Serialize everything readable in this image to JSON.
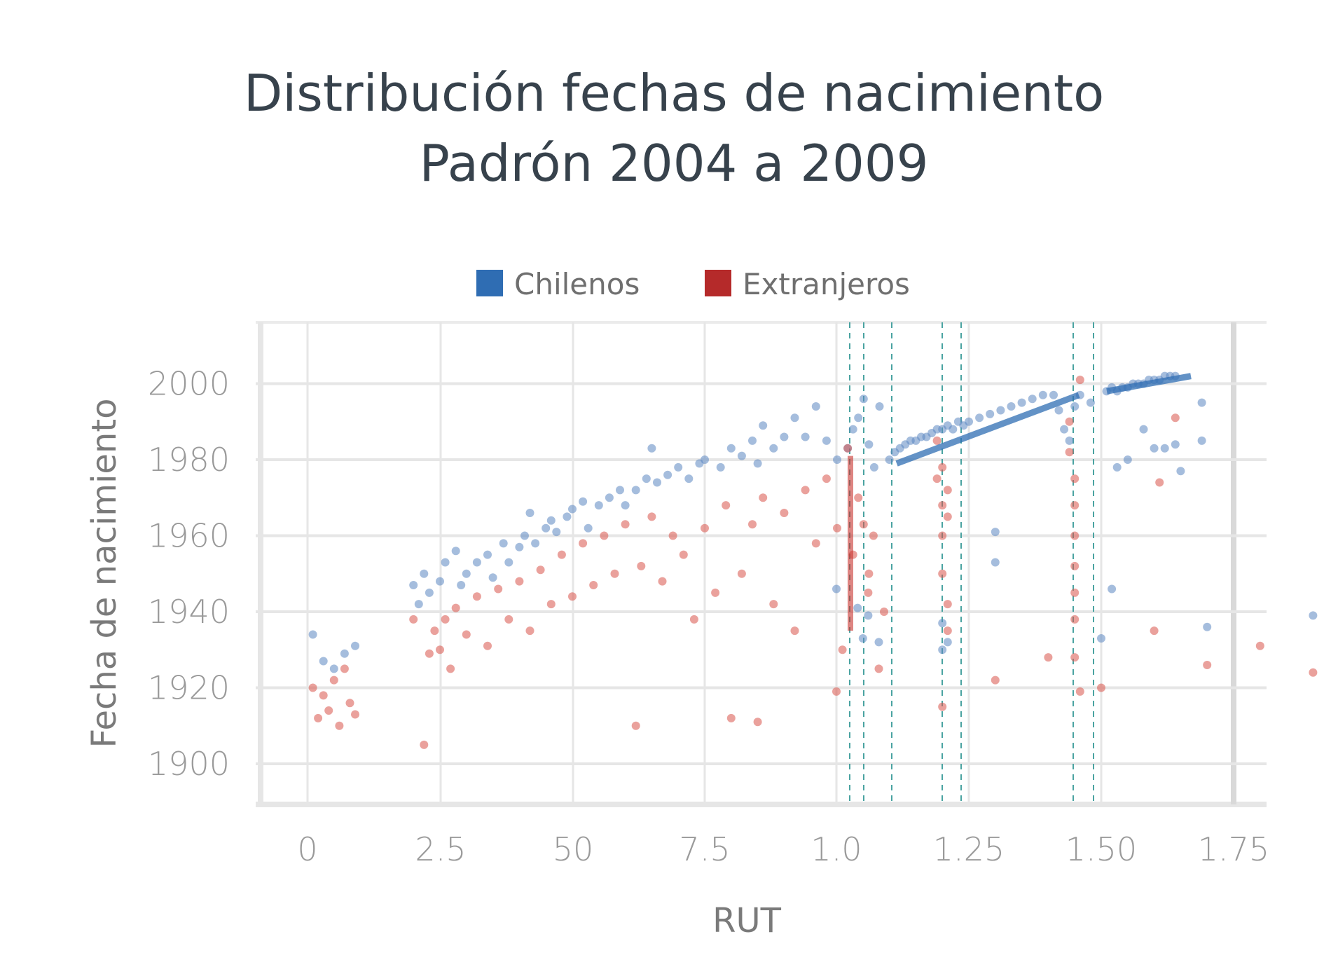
{
  "chart_data": {
    "type": "scatter",
    "title": "Distribución fechas de nacimiento",
    "subtitle": "Padrón 2004 a 2009",
    "xlabel": "RUT",
    "ylabel": "Fecha de nacimiento",
    "x_tick_labels": [
      "0",
      "2.5",
      "50",
      "7.5",
      "1.0",
      "1.25",
      "1.50",
      "1.75"
    ],
    "y_tick_labels": [
      "1900",
      "1920",
      "1940",
      "1960",
      "1980",
      "2000"
    ],
    "ylim": [
      1890,
      2018
    ],
    "grid": true,
    "legend_position": "top-center",
    "colors": {
      "Chilenos": "#2f6db3",
      "Extranjeros": "#b52a2a"
    },
    "series": [
      {
        "name": "Chilenos",
        "color": "#5b86c1",
        "points": [
          [
            0.1,
            1934
          ],
          [
            0.3,
            1927
          ],
          [
            0.5,
            1925
          ],
          [
            0.7,
            1929
          ],
          [
            0.9,
            1931
          ],
          [
            1.0,
            1946
          ],
          [
            1.2,
            1930
          ],
          [
            1.3,
            1953
          ],
          [
            1.3,
            1961
          ],
          [
            1.5,
            1933
          ],
          [
            1.7,
            1936
          ],
          [
            1.9,
            1939
          ],
          [
            2.0,
            1947
          ],
          [
            2.1,
            1942
          ],
          [
            2.2,
            1950
          ],
          [
            2.3,
            1945
          ],
          [
            2.5,
            1948
          ],
          [
            2.6,
            1953
          ],
          [
            2.8,
            1956
          ],
          [
            2.9,
            1947
          ],
          [
            3.0,
            1950
          ],
          [
            3.2,
            1953
          ],
          [
            3.4,
            1955
          ],
          [
            3.5,
            1949
          ],
          [
            3.7,
            1958
          ],
          [
            3.8,
            1953
          ],
          [
            4.0,
            1957
          ],
          [
            4.1,
            1960
          ],
          [
            4.2,
            1966
          ],
          [
            4.3,
            1958
          ],
          [
            4.5,
            1962
          ],
          [
            4.6,
            1964
          ],
          [
            4.7,
            1961
          ],
          [
            4.9,
            1965
          ],
          [
            5.0,
            1967
          ],
          [
            5.2,
            1969
          ],
          [
            5.3,
            1962
          ],
          [
            5.5,
            1968
          ],
          [
            5.7,
            1970
          ],
          [
            5.9,
            1972
          ],
          [
            6.0,
            1968
          ],
          [
            6.2,
            1972
          ],
          [
            6.4,
            1975
          ],
          [
            6.5,
            1983
          ],
          [
            6.6,
            1974
          ],
          [
            6.8,
            1976
          ],
          [
            7.0,
            1978
          ],
          [
            7.2,
            1975
          ],
          [
            7.4,
            1979
          ],
          [
            7.5,
            1980
          ],
          [
            7.8,
            1978
          ],
          [
            8.0,
            1983
          ],
          [
            8.2,
            1981
          ],
          [
            8.4,
            1985
          ],
          [
            8.5,
            1979
          ],
          [
            8.6,
            1989
          ],
          [
            8.8,
            1983
          ],
          [
            9.0,
            1986
          ],
          [
            9.2,
            1991
          ],
          [
            9.4,
            1986
          ],
          [
            9.6,
            1994
          ],
          [
            9.8,
            1985
          ],
          [
            10.0,
            1980
          ],
          [
            10.2,
            1983
          ],
          [
            10.3,
            1988
          ],
          [
            10.4,
            1991
          ],
          [
            10.5,
            1996
          ],
          [
            10.6,
            1984
          ],
          [
            10.7,
            1978
          ],
          [
            10.8,
            1994
          ],
          [
            1.1,
            1980
          ],
          [
            1.11,
            1982
          ],
          [
            1.12,
            1983
          ],
          [
            1.13,
            1984
          ],
          [
            1.14,
            1985
          ],
          [
            1.15,
            1985
          ],
          [
            1.16,
            1986
          ],
          [
            1.17,
            1986
          ],
          [
            1.18,
            1987
          ],
          [
            1.19,
            1988
          ],
          [
            1.2,
            1988
          ],
          [
            1.21,
            1989
          ],
          [
            1.22,
            1988
          ],
          [
            1.23,
            1990
          ],
          [
            1.24,
            1989
          ],
          [
            1.25,
            1990
          ],
          [
            1.27,
            1991
          ],
          [
            1.29,
            1992
          ],
          [
            1.31,
            1993
          ],
          [
            1.33,
            1994
          ],
          [
            1.35,
            1995
          ],
          [
            1.37,
            1996
          ],
          [
            1.39,
            1997
          ],
          [
            1.41,
            1997
          ],
          [
            1.42,
            1993
          ],
          [
            1.43,
            1988
          ],
          [
            1.44,
            1985
          ],
          [
            1.45,
            1994
          ],
          [
            1.46,
            1997
          ],
          [
            1.48,
            1995
          ],
          [
            1.51,
            1998
          ],
          [
            1.52,
            1999
          ],
          [
            1.53,
            1998
          ],
          [
            1.54,
            1999
          ],
          [
            1.55,
            1999
          ],
          [
            1.56,
            2000
          ],
          [
            1.57,
            2000
          ],
          [
            1.58,
            2000
          ],
          [
            1.59,
            2001
          ],
          [
            1.6,
            2001
          ],
          [
            1.61,
            2001
          ],
          [
            1.62,
            2002
          ],
          [
            1.63,
            2002
          ],
          [
            1.64,
            2002
          ],
          [
            1.52,
            1946
          ],
          [
            1.53,
            1978
          ],
          [
            1.55,
            1980
          ],
          [
            1.58,
            1988
          ],
          [
            1.6,
            1983
          ],
          [
            1.62,
            1983
          ],
          [
            1.64,
            1984
          ],
          [
            1.65,
            1977
          ],
          [
            1.69,
            1985
          ],
          [
            1.69,
            1995
          ],
          [
            1.2,
            1937
          ],
          [
            1.21,
            1932
          ],
          [
            1.06,
            1939
          ],
          [
            1.08,
            1932
          ],
          [
            1.05,
            1933
          ],
          [
            1.04,
            1941
          ]
        ]
      },
      {
        "name": "Extranjeros",
        "color": "#d9534a",
        "points": [
          [
            0.1,
            1920
          ],
          [
            0.2,
            1912
          ],
          [
            0.3,
            1918
          ],
          [
            0.4,
            1914
          ],
          [
            0.5,
            1922
          ],
          [
            0.6,
            1910
          ],
          [
            0.7,
            1925
          ],
          [
            0.8,
            1916
          ],
          [
            0.9,
            1913
          ],
          [
            1.0,
            1919
          ],
          [
            1.2,
            1915
          ],
          [
            1.3,
            1922
          ],
          [
            1.4,
            1928
          ],
          [
            1.5,
            1920
          ],
          [
            1.6,
            1935
          ],
          [
            1.7,
            1926
          ],
          [
            1.8,
            1931
          ],
          [
            1.9,
            1924
          ],
          [
            2.0,
            1938
          ],
          [
            2.2,
            1905
          ],
          [
            2.3,
            1929
          ],
          [
            2.4,
            1935
          ],
          [
            2.5,
            1930
          ],
          [
            2.6,
            1938
          ],
          [
            2.7,
            1925
          ],
          [
            2.8,
            1941
          ],
          [
            3.0,
            1934
          ],
          [
            3.2,
            1944
          ],
          [
            3.4,
            1931
          ],
          [
            3.6,
            1946
          ],
          [
            3.8,
            1938
          ],
          [
            4.0,
            1948
          ],
          [
            4.2,
            1935
          ],
          [
            4.4,
            1951
          ],
          [
            4.6,
            1942
          ],
          [
            4.8,
            1955
          ],
          [
            5.0,
            1944
          ],
          [
            5.2,
            1958
          ],
          [
            5.4,
            1947
          ],
          [
            5.6,
            1960
          ],
          [
            5.8,
            1950
          ],
          [
            6.0,
            1963
          ],
          [
            6.2,
            1910
          ],
          [
            6.3,
            1952
          ],
          [
            6.5,
            1965
          ],
          [
            6.7,
            1948
          ],
          [
            6.9,
            1960
          ],
          [
            7.1,
            1955
          ],
          [
            7.3,
            1938
          ],
          [
            7.5,
            1962
          ],
          [
            7.7,
            1945
          ],
          [
            7.9,
            1968
          ],
          [
            8.0,
            1912
          ],
          [
            8.2,
            1950
          ],
          [
            8.4,
            1963
          ],
          [
            8.5,
            1911
          ],
          [
            8.6,
            1970
          ],
          [
            8.8,
            1942
          ],
          [
            9.0,
            1966
          ],
          [
            9.2,
            1935
          ],
          [
            9.4,
            1972
          ],
          [
            9.6,
            1958
          ],
          [
            9.8,
            1975
          ],
          [
            10.0,
            1962
          ],
          [
            10.1,
            1930
          ],
          [
            10.2,
            1983
          ],
          [
            10.3,
            1955
          ],
          [
            10.4,
            1970
          ],
          [
            10.5,
            1963
          ],
          [
            10.6,
            1950
          ],
          [
            1.19,
            1985
          ],
          [
            1.19,
            1975
          ],
          [
            1.2,
            1968
          ],
          [
            1.2,
            1960
          ],
          [
            1.2,
            1950
          ],
          [
            1.21,
            1942
          ],
          [
            1.21,
            1935
          ],
          [
            1.21,
            1965
          ],
          [
            1.2,
            1978
          ],
          [
            1.21,
            1972
          ],
          [
            1.44,
            1990
          ],
          [
            1.44,
            1982
          ],
          [
            1.45,
            1975
          ],
          [
            1.45,
            1968
          ],
          [
            1.45,
            1960
          ],
          [
            1.45,
            1952
          ],
          [
            1.45,
            1945
          ],
          [
            1.45,
            1938
          ],
          [
            1.45,
            1928
          ],
          [
            1.46,
            1919
          ],
          [
            1.46,
            2001
          ],
          [
            1.64,
            1991
          ],
          [
            1.61,
            1974
          ],
          [
            1.06,
            1945
          ],
          [
            1.07,
            1960
          ],
          [
            1.08,
            1925
          ],
          [
            1.09,
            1940
          ]
        ]
      }
    ]
  }
}
